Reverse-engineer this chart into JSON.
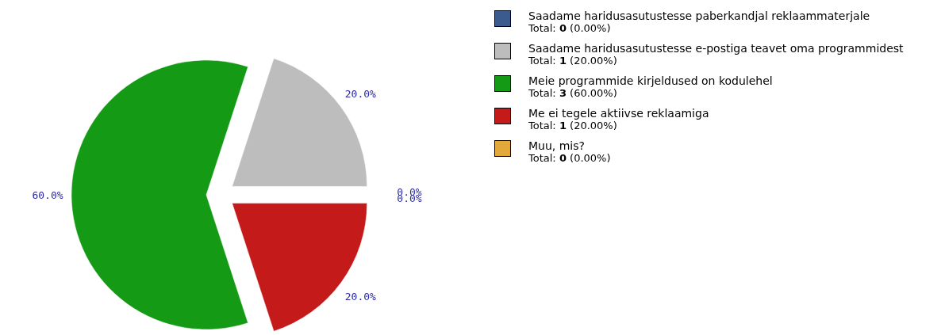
{
  "chart_data": {
    "type": "pie",
    "categories": [
      "Saadame haridusasutustesse paberkandjal reklaammaterjale",
      "Saadame haridusasutustesse e-postiga teavet oma programmidest",
      "Meie programmide kirjeldused on kodulehel",
      "Me ei tegele aktiivse reklaamiga",
      "Muu, mis?"
    ],
    "values": [
      0,
      20,
      60,
      20,
      0
    ],
    "colors": [
      "#3b5b8e",
      "#bdbdbd",
      "#149a14",
      "#c41a1a",
      "#e2a83a"
    ],
    "value_labels": [
      "0.0%",
      "20.0%",
      "60.0%",
      "20.0%",
      "0.0%"
    ],
    "annotations": [
      "Total: 0 (0.00%)",
      "Total: 1 (20.00%)",
      "Total: 3 (60.00%)",
      "Total: 1 (20.00%)",
      "Total: 0 (0.00%)"
    ],
    "legend": "right"
  }
}
